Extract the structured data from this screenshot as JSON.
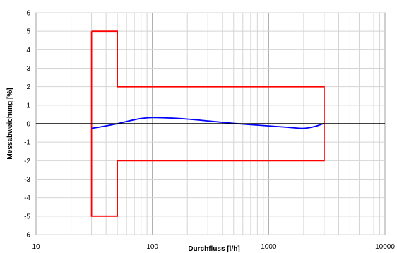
{
  "chart_data": {
    "type": "line",
    "title": "",
    "xlabel": "Durchfluss [l/h]",
    "ylabel": "Messabweichung [%]",
    "x_scale": "log",
    "xlim": [
      10,
      10000
    ],
    "ylim": [
      -6,
      6
    ],
    "x_ticks": [
      10,
      100,
      1000,
      10000
    ],
    "x_tick_labels": [
      "10",
      "100",
      "1000",
      "10000"
    ],
    "y_ticks": [
      -6,
      -5,
      -4,
      -3,
      -2,
      -1,
      0,
      1,
      2,
      3,
      4,
      5,
      6
    ],
    "y_tick_labels": [
      "-6",
      "-5",
      "-4",
      "-3",
      "-2",
      "-1",
      "0",
      "1",
      "2",
      "3",
      "4",
      "5",
      "6"
    ],
    "grid": true,
    "legend": "none",
    "series": [
      {
        "role": "error-limit-envelope",
        "color": "#ff0000",
        "x": [
          30,
          50,
          50,
          3000,
          3000,
          50,
          50,
          30,
          30
        ],
        "y": [
          5,
          5,
          2,
          2,
          -2,
          -2,
          -5,
          -5,
          5
        ]
      },
      {
        "role": "measured-deviation",
        "color": "#0000ff",
        "x": [
          30,
          40,
          50,
          60,
          80,
          100,
          150,
          200,
          300,
          500,
          700,
          1000,
          1500,
          2000,
          2500,
          3000
        ],
        "y": [
          -0.25,
          -0.12,
          0,
          0.12,
          0.28,
          0.33,
          0.3,
          0.25,
          0.15,
          0.02,
          -0.05,
          -0.12,
          -0.2,
          -0.25,
          -0.15,
          0.02
        ]
      },
      {
        "role": "zero-line",
        "color": "#000000",
        "x": [
          10,
          10000
        ],
        "y": [
          0,
          0
        ]
      }
    ]
  }
}
